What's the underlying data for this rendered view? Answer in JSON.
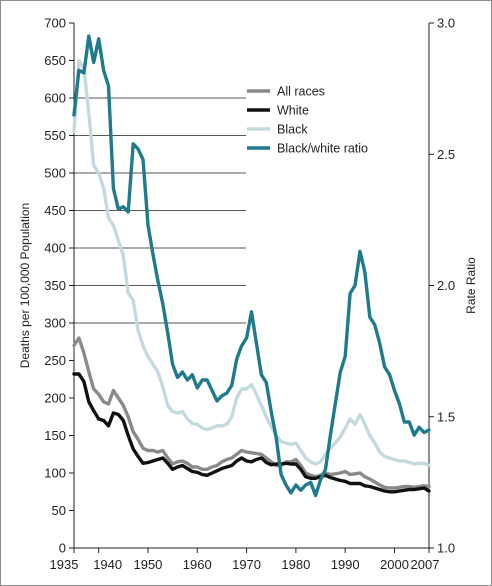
{
  "chart_data": {
    "type": "line",
    "title": "",
    "ylabel_left": "Deaths per 100,000 Population",
    "ylabel_right": "Rate Ratio",
    "xlabel": "",
    "x_ticks": [
      "1935",
      "1940",
      "1950",
      "1960",
      "1970",
      "1980",
      "1990",
      "2000",
      "2007"
    ],
    "x_range": [
      1935,
      2007
    ],
    "y_left": {
      "range": [
        0,
        700
      ],
      "ticks": [
        "0",
        "50",
        "100",
        "150",
        "200",
        "250",
        "300",
        "350",
        "400",
        "450",
        "500",
        "550",
        "600",
        "650",
        "700"
      ]
    },
    "y_right": {
      "range": [
        1.0,
        3.0
      ],
      "ticks": [
        "1.0",
        "1.5",
        "2.0",
        "2.5",
        "3.0"
      ]
    },
    "grid": "horizontal, at left-axis ticks 300 through 600",
    "legend_position": "top-right",
    "legend": [
      "All races",
      "White",
      "Black",
      "Black/white ratio"
    ],
    "series": [
      {
        "name": "All races",
        "axis": "left",
        "color": "#8a8a8a",
        "points": [
          [
            1935,
            270
          ],
          [
            1936,
            280
          ],
          [
            1937,
            260
          ],
          [
            1938,
            235
          ],
          [
            1939,
            212
          ],
          [
            1940,
            205
          ],
          [
            1941,
            195
          ],
          [
            1942,
            192
          ],
          [
            1943,
            210
          ],
          [
            1944,
            200
          ],
          [
            1945,
            190
          ],
          [
            1946,
            175
          ],
          [
            1947,
            155
          ],
          [
            1948,
            145
          ],
          [
            1949,
            133
          ],
          [
            1950,
            130
          ],
          [
            1951,
            130
          ],
          [
            1952,
            128
          ],
          [
            1953,
            130
          ],
          [
            1954,
            120
          ],
          [
            1955,
            112
          ],
          [
            1956,
            115
          ],
          [
            1957,
            116
          ],
          [
            1958,
            113
          ],
          [
            1959,
            108
          ],
          [
            1960,
            108
          ],
          [
            1961,
            105
          ],
          [
            1962,
            105
          ],
          [
            1963,
            108
          ],
          [
            1964,
            110
          ],
          [
            1965,
            115
          ],
          [
            1966,
            118
          ],
          [
            1967,
            120
          ],
          [
            1968,
            125
          ],
          [
            1969,
            130
          ],
          [
            1970,
            128
          ],
          [
            1971,
            127
          ],
          [
            1972,
            126
          ],
          [
            1973,
            125
          ],
          [
            1974,
            120
          ],
          [
            1975,
            115
          ],
          [
            1976,
            110
          ],
          [
            1977,
            110
          ],
          [
            1978,
            115
          ],
          [
            1979,
            115
          ],
          [
            1980,
            118
          ],
          [
            1981,
            110
          ],
          [
            1982,
            100
          ],
          [
            1983,
            97
          ],
          [
            1984,
            95
          ],
          [
            1985,
            97
          ],
          [
            1986,
            100
          ],
          [
            1987,
            98
          ],
          [
            1988,
            99
          ],
          [
            1989,
            100
          ],
          [
            1990,
            102
          ],
          [
            1991,
            98
          ],
          [
            1992,
            99
          ],
          [
            1993,
            100
          ],
          [
            1994,
            95
          ],
          [
            1995,
            92
          ],
          [
            1996,
            88
          ],
          [
            1997,
            84
          ],
          [
            1998,
            81
          ],
          [
            1999,
            80
          ],
          [
            2000,
            80
          ],
          [
            2001,
            81
          ],
          [
            2002,
            82
          ],
          [
            2003,
            82
          ],
          [
            2004,
            81
          ],
          [
            2005,
            82
          ],
          [
            2006,
            83
          ],
          [
            2007,
            82
          ]
        ]
      },
      {
        "name": "White",
        "axis": "left",
        "color": "#111111",
        "points": [
          [
            1935,
            232
          ],
          [
            1936,
            232
          ],
          [
            1937,
            222
          ],
          [
            1938,
            195
          ],
          [
            1939,
            183
          ],
          [
            1940,
            172
          ],
          [
            1941,
            170
          ],
          [
            1942,
            163
          ],
          [
            1943,
            180
          ],
          [
            1944,
            178
          ],
          [
            1945,
            170
          ],
          [
            1946,
            150
          ],
          [
            1947,
            132
          ],
          [
            1948,
            122
          ],
          [
            1949,
            113
          ],
          [
            1950,
            114
          ],
          [
            1951,
            116
          ],
          [
            1952,
            118
          ],
          [
            1953,
            120
          ],
          [
            1954,
            113
          ],
          [
            1955,
            105
          ],
          [
            1956,
            108
          ],
          [
            1957,
            110
          ],
          [
            1958,
            106
          ],
          [
            1959,
            102
          ],
          [
            1960,
            101
          ],
          [
            1961,
            98
          ],
          [
            1962,
            97
          ],
          [
            1963,
            100
          ],
          [
            1964,
            103
          ],
          [
            1965,
            106
          ],
          [
            1966,
            108
          ],
          [
            1967,
            110
          ],
          [
            1968,
            116
          ],
          [
            1969,
            120
          ],
          [
            1970,
            116
          ],
          [
            1971,
            115
          ],
          [
            1972,
            118
          ],
          [
            1973,
            120
          ],
          [
            1974,
            114
          ],
          [
            1975,
            111
          ],
          [
            1976,
            112
          ],
          [
            1977,
            112
          ],
          [
            1978,
            113
          ],
          [
            1979,
            112
          ],
          [
            1980,
            112
          ],
          [
            1981,
            105
          ],
          [
            1982,
            95
          ],
          [
            1983,
            93
          ],
          [
            1984,
            93
          ],
          [
            1985,
            95
          ],
          [
            1986,
            97
          ],
          [
            1987,
            94
          ],
          [
            1988,
            92
          ],
          [
            1989,
            90
          ],
          [
            1990,
            89
          ],
          [
            1991,
            86
          ],
          [
            1992,
            86
          ],
          [
            1993,
            86
          ],
          [
            1994,
            83
          ],
          [
            1995,
            82
          ],
          [
            1996,
            80
          ],
          [
            1997,
            78
          ],
          [
            1998,
            76
          ],
          [
            1999,
            75
          ],
          [
            2000,
            75
          ],
          [
            2001,
            76
          ],
          [
            2002,
            77
          ],
          [
            2003,
            78
          ],
          [
            2004,
            78
          ],
          [
            2005,
            79
          ],
          [
            2006,
            80
          ],
          [
            2007,
            76
          ]
        ]
      },
      {
        "name": "Black",
        "axis": "left",
        "color": "#c4dadf",
        "points": [
          [
            1935,
            555
          ],
          [
            1936,
            650
          ],
          [
            1937,
            640
          ],
          [
            1938,
            580
          ],
          [
            1939,
            510
          ],
          [
            1940,
            500
          ],
          [
            1941,
            480
          ],
          [
            1942,
            440
          ],
          [
            1943,
            430
          ],
          [
            1944,
            410
          ],
          [
            1945,
            390
          ],
          [
            1946,
            340
          ],
          [
            1947,
            330
          ],
          [
            1948,
            290
          ],
          [
            1949,
            270
          ],
          [
            1950,
            255
          ],
          [
            1951,
            245
          ],
          [
            1952,
            235
          ],
          [
            1953,
            215
          ],
          [
            1954,
            190
          ],
          [
            1955,
            182
          ],
          [
            1956,
            180
          ],
          [
            1957,
            182
          ],
          [
            1958,
            172
          ],
          [
            1959,
            166
          ],
          [
            1960,
            165
          ],
          [
            1961,
            160
          ],
          [
            1962,
            158
          ],
          [
            1963,
            160
          ],
          [
            1964,
            163
          ],
          [
            1965,
            163
          ],
          [
            1966,
            165
          ],
          [
            1967,
            175
          ],
          [
            1968,
            200
          ],
          [
            1969,
            212
          ],
          [
            1970,
            212
          ],
          [
            1971,
            218
          ],
          [
            1972,
            205
          ],
          [
            1973,
            190
          ],
          [
            1974,
            175
          ],
          [
            1975,
            162
          ],
          [
            1976,
            150
          ],
          [
            1977,
            142
          ],
          [
            1978,
            140
          ],
          [
            1979,
            138
          ],
          [
            1980,
            140
          ],
          [
            1981,
            130
          ],
          [
            1982,
            120
          ],
          [
            1983,
            115
          ],
          [
            1984,
            112
          ],
          [
            1985,
            115
          ],
          [
            1986,
            125
          ],
          [
            1987,
            133
          ],
          [
            1988,
            140
          ],
          [
            1989,
            148
          ],
          [
            1990,
            160
          ],
          [
            1991,
            172
          ],
          [
            1992,
            165
          ],
          [
            1993,
            178
          ],
          [
            1994,
            165
          ],
          [
            1995,
            150
          ],
          [
            1996,
            140
          ],
          [
            1997,
            128
          ],
          [
            1998,
            122
          ],
          [
            1999,
            120
          ],
          [
            2000,
            118
          ],
          [
            2001,
            116
          ],
          [
            2002,
            116
          ],
          [
            2003,
            114
          ],
          [
            2004,
            112
          ],
          [
            2005,
            113
          ],
          [
            2006,
            113
          ],
          [
            2007,
            110
          ]
        ]
      },
      {
        "name": "Black/white ratio",
        "axis": "right",
        "color": "#1e7a8c",
        "points": [
          [
            1935,
            2.65
          ],
          [
            1936,
            2.82
          ],
          [
            1937,
            2.81
          ],
          [
            1938,
            2.95
          ],
          [
            1939,
            2.85
          ],
          [
            1940,
            2.94
          ],
          [
            1941,
            2.82
          ],
          [
            1942,
            2.76
          ],
          [
            1943,
            2.37
          ],
          [
            1944,
            2.29
          ],
          [
            1945,
            2.3
          ],
          [
            1946,
            2.28
          ],
          [
            1947,
            2.54
          ],
          [
            1948,
            2.52
          ],
          [
            1949,
            2.48
          ],
          [
            1950,
            2.23
          ],
          [
            1951,
            2.12
          ],
          [
            1952,
            2.02
          ],
          [
            1953,
            1.93
          ],
          [
            1954,
            1.82
          ],
          [
            1955,
            1.7
          ],
          [
            1956,
            1.65
          ],
          [
            1957,
            1.67
          ],
          [
            1958,
            1.64
          ],
          [
            1959,
            1.66
          ],
          [
            1960,
            1.61
          ],
          [
            1961,
            1.64
          ],
          [
            1962,
            1.64
          ],
          [
            1963,
            1.6
          ],
          [
            1964,
            1.56
          ],
          [
            1965,
            1.58
          ],
          [
            1966,
            1.59
          ],
          [
            1967,
            1.62
          ],
          [
            1968,
            1.72
          ],
          [
            1969,
            1.77
          ],
          [
            1970,
            1.8
          ],
          [
            1971,
            1.9
          ],
          [
            1972,
            1.78
          ],
          [
            1973,
            1.66
          ],
          [
            1974,
            1.63
          ],
          [
            1975,
            1.52
          ],
          [
            1976,
            1.42
          ],
          [
            1977,
            1.28
          ],
          [
            1978,
            1.24
          ],
          [
            1979,
            1.21
          ],
          [
            1980,
            1.24
          ],
          [
            1981,
            1.22
          ],
          [
            1982,
            1.24
          ],
          [
            1983,
            1.25
          ],
          [
            1984,
            1.2
          ],
          [
            1985,
            1.26
          ],
          [
            1986,
            1.3
          ],
          [
            1987,
            1.43
          ],
          [
            1988,
            1.55
          ],
          [
            1989,
            1.67
          ],
          [
            1990,
            1.73
          ],
          [
            1991,
            1.97
          ],
          [
            1992,
            2.0
          ],
          [
            1993,
            2.13
          ],
          [
            1994,
            2.05
          ],
          [
            1995,
            1.88
          ],
          [
            1996,
            1.85
          ],
          [
            1997,
            1.78
          ],
          [
            1998,
            1.69
          ],
          [
            1999,
            1.66
          ],
          [
            2000,
            1.6
          ],
          [
            2001,
            1.55
          ],
          [
            2002,
            1.48
          ],
          [
            2003,
            1.48
          ],
          [
            2004,
            1.43
          ],
          [
            2005,
            1.46
          ],
          [
            2006,
            1.44
          ],
          [
            2007,
            1.45
          ]
        ]
      }
    ]
  }
}
